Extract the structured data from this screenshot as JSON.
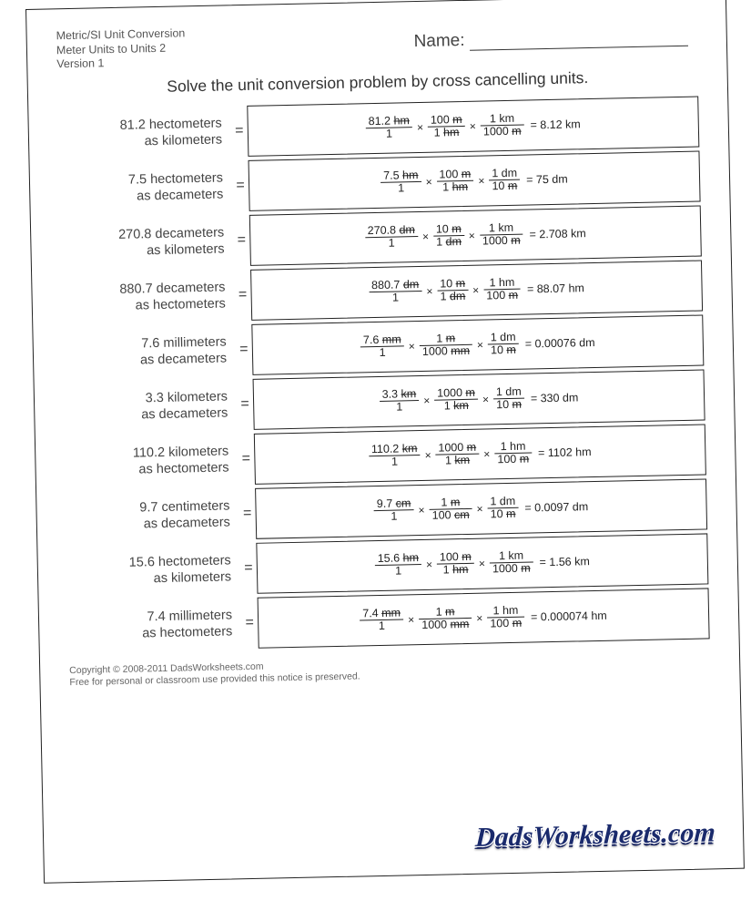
{
  "meta": {
    "line1": "Metric/SI Unit Conversion",
    "line2": "Meter Units to Units 2",
    "line3": "Version 1"
  },
  "name_label": "Name:",
  "instruction": "Solve the unit conversion problem by cross cancelling units.",
  "equals": "=",
  "mult": "×",
  "problems": [
    {
      "q1": "81.2 hectometers",
      "q2": "as kilometers",
      "f1n_v": "81.2",
      "f1n_u": "hm",
      "f1d": "1",
      "f2n_v": "100",
      "f2n_u": "m",
      "f2d_v": "1",
      "f2d_u": "hm",
      "f3n_v": "1",
      "f3n_u": "km",
      "f3d_v": "1000",
      "f3d_u": "m",
      "ans": "= 8.12 km",
      "target_strike": false
    },
    {
      "q1": "7.5 hectometers",
      "q2": "as decameters",
      "f1n_v": "7.5",
      "f1n_u": "hm",
      "f1d": "1",
      "f2n_v": "100",
      "f2n_u": "m",
      "f2d_v": "1",
      "f2d_u": "hm",
      "f3n_v": "1",
      "f3n_u": "dm",
      "f3d_v": "10",
      "f3d_u": "m",
      "ans": "= 75 dm",
      "target_strike": false
    },
    {
      "q1": "270.8 decameters",
      "q2": "as kilometers",
      "f1n_v": "270.8",
      "f1n_u": "dm",
      "f1d": "1",
      "f2n_v": "10",
      "f2n_u": "m",
      "f2d_v": "1",
      "f2d_u": "dm",
      "f3n_v": "1",
      "f3n_u": "km",
      "f3d_v": "1000",
      "f3d_u": "m",
      "ans": "= 2.708 km",
      "target_strike": false
    },
    {
      "q1": "880.7 decameters",
      "q2": "as hectometers",
      "f1n_v": "880.7",
      "f1n_u": "dm",
      "f1d": "1",
      "f2n_v": "10",
      "f2n_u": "m",
      "f2d_v": "1",
      "f2d_u": "dm",
      "f3n_v": "1",
      "f3n_u": "hm",
      "f3d_v": "100",
      "f3d_u": "m",
      "ans": "= 88.07 hm",
      "target_strike": false
    },
    {
      "q1": "7.6 millimeters",
      "q2": "as decameters",
      "f1n_v": "7.6",
      "f1n_u": "mm",
      "f1d": "1",
      "f2n_v": "1",
      "f2n_u": "m",
      "f2d_v": "1000",
      "f2d_u": "mm",
      "f3n_v": "1",
      "f3n_u": "dm",
      "f3d_v": "10",
      "f3d_u": "m",
      "ans": "= 0.00076 dm",
      "target_strike": false
    },
    {
      "q1": "3.3 kilometers",
      "q2": "as decameters",
      "f1n_v": "3.3",
      "f1n_u": "km",
      "f1d": "1",
      "f2n_v": "1000",
      "f2n_u": "m",
      "f2d_v": "1",
      "f2d_u": "km",
      "f3n_v": "1",
      "f3n_u": "dm",
      "f3d_v": "10",
      "f3d_u": "m",
      "ans": "= 330 dm",
      "target_strike": false
    },
    {
      "q1": "110.2 kilometers",
      "q2": "as hectometers",
      "f1n_v": "110.2",
      "f1n_u": "km",
      "f1d": "1",
      "f2n_v": "1000",
      "f2n_u": "m",
      "f2d_v": "1",
      "f2d_u": "km",
      "f3n_v": "1",
      "f3n_u": "hm",
      "f3d_v": "100",
      "f3d_u": "m",
      "ans": "= 1102 hm",
      "target_strike": false
    },
    {
      "q1": "9.7 centimeters",
      "q2": "as decameters",
      "f1n_v": "9.7",
      "f1n_u": "cm",
      "f1d": "1",
      "f2n_v": "1",
      "f2n_u": "m",
      "f2d_v": "100",
      "f2d_u": "cm",
      "f3n_v": "1",
      "f3n_u": "dm",
      "f3d_v": "10",
      "f3d_u": "m",
      "ans": "= 0.0097 dm",
      "target_strike": false
    },
    {
      "q1": "15.6 hectometers",
      "q2": "as kilometers",
      "f1n_v": "15.6",
      "f1n_u": "hm",
      "f1d": "1",
      "f2n_v": "100",
      "f2n_u": "m",
      "f2d_v": "1",
      "f2d_u": "hm",
      "f3n_v": "1",
      "f3n_u": "km",
      "f3d_v": "1000",
      "f3d_u": "m",
      "ans": "= 1.56 km",
      "target_strike": false
    },
    {
      "q1": "7.4 millimeters",
      "q2": "as hectometers",
      "f1n_v": "7.4",
      "f1n_u": "mm",
      "f1d": "1",
      "f2n_v": "1",
      "f2n_u": "m",
      "f2d_v": "1000",
      "f2d_u": "mm",
      "f3n_v": "1",
      "f3n_u": "hm",
      "f3d_v": "100",
      "f3d_u": "m",
      "ans": "= 0.000074 hm",
      "target_strike": false
    }
  ],
  "copyright": {
    "line1": "Copyright © 2008-2011 DadsWorksheets.com",
    "line2": "Free for personal or classroom use provided this notice is preserved."
  },
  "brand": "DadsWorksheets.com",
  "style": {
    "page_bg": "#ffffff",
    "border": "#222222",
    "text": "#333333",
    "muted": "#555555",
    "brand_color": "#1a2a6c",
    "title_fontsize": 17.5,
    "meta_fontsize": 12.5,
    "question_fontsize": 14.5,
    "answer_fontsize": 12.5,
    "rotation_deg": -1.2
  }
}
